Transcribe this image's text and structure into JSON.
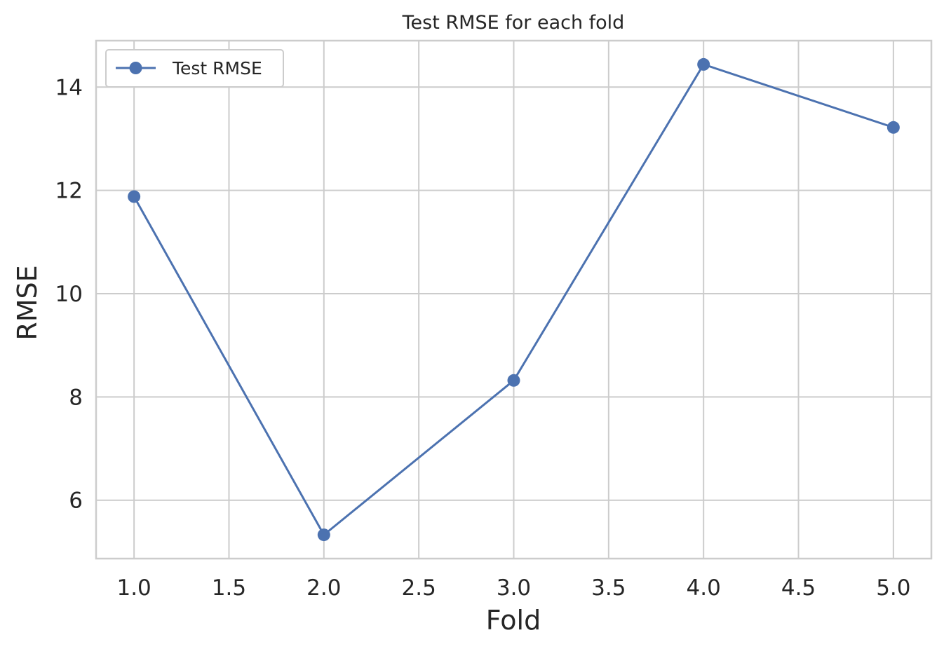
{
  "chart_data": {
    "type": "line",
    "title": "Test RMSE for each fold",
    "xlabel": "Fold",
    "ylabel": "RMSE",
    "x": [
      1,
      2,
      3,
      4,
      5
    ],
    "series": [
      {
        "name": "Test RMSE",
        "values": [
          11.88,
          5.33,
          8.32,
          14.44,
          13.22
        ],
        "color": "#4c72b0"
      }
    ],
    "xlim": [
      0.8,
      5.2
    ],
    "ylim": [
      4.87,
      14.9
    ],
    "xticks": [
      1.0,
      1.5,
      2.0,
      2.5,
      3.0,
      3.5,
      4.0,
      4.5,
      5.0
    ],
    "xtick_labels": [
      "1.0",
      "1.5",
      "2.0",
      "2.5",
      "3.0",
      "3.5",
      "4.0",
      "4.5",
      "5.0"
    ],
    "yticks": [
      6,
      8,
      10,
      12,
      14
    ],
    "ytick_labels": [
      "6",
      "8",
      "10",
      "12",
      "14"
    ],
    "grid": true,
    "legend_position": "top-left",
    "marker": "circle"
  }
}
